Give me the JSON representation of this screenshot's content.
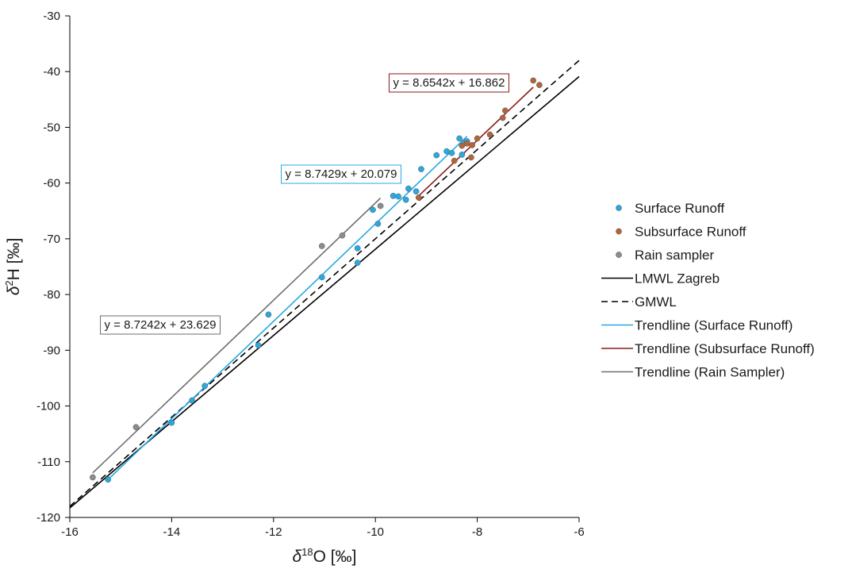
{
  "chart_data": {
    "type": "scatter",
    "xlabel": {
      "main": "δ",
      "sup": "18",
      "rest": "O [‰]"
    },
    "ylabel": {
      "main": "δ",
      "sup": "2",
      "rest": "H [‰]"
    },
    "xlim": [
      -16,
      -6
    ],
    "ylim": [
      -120,
      -30
    ],
    "x_ticks": [
      -16,
      -14,
      -12,
      -10,
      -8,
      -6
    ],
    "y_ticks": [
      -30,
      -40,
      -50,
      -60,
      -70,
      -80,
      -90,
      -100,
      -110,
      -120
    ],
    "grid": false,
    "legend_position": "right",
    "series": [
      {
        "name": "Surface Runoff",
        "kind": "points",
        "color": "#29A9E0",
        "points": [
          [
            -15.25,
            -113.2
          ],
          [
            -14.0,
            -103.0
          ],
          [
            -13.6,
            -99.0
          ],
          [
            -13.35,
            -96.4
          ],
          [
            -12.3,
            -89.1
          ],
          [
            -12.1,
            -83.6
          ],
          [
            -11.05,
            -76.9
          ],
          [
            -10.35,
            -74.3
          ],
          [
            -10.35,
            -71.7
          ],
          [
            -9.95,
            -67.3
          ],
          [
            -10.05,
            -64.8
          ],
          [
            -9.65,
            -62.3
          ],
          [
            -9.55,
            -62.4
          ],
          [
            -9.4,
            -63.0
          ],
          [
            -9.35,
            -61.0
          ],
          [
            -9.2,
            -61.5
          ],
          [
            -9.1,
            -57.5
          ],
          [
            -8.8,
            -55.0
          ],
          [
            -8.6,
            -54.3
          ],
          [
            -8.5,
            -54.6
          ],
          [
            -8.35,
            -52.0
          ],
          [
            -8.3,
            -54.9
          ],
          [
            -8.25,
            -52.8
          ],
          [
            -8.2,
            -52.5
          ]
        ]
      },
      {
        "name": "Subsurface Runoff",
        "kind": "points",
        "color": "#B3653A",
        "points": [
          [
            -9.15,
            -62.6
          ],
          [
            -8.45,
            -56.0
          ],
          [
            -8.3,
            -53.3
          ],
          [
            -8.2,
            -52.9
          ],
          [
            -8.12,
            -55.4
          ],
          [
            -8.1,
            -53.2
          ],
          [
            -8.0,
            -52.0
          ],
          [
            -7.75,
            -51.3
          ],
          [
            -7.5,
            -48.3
          ],
          [
            -7.45,
            -47.0
          ],
          [
            -6.9,
            -41.6
          ],
          [
            -6.78,
            -42.4
          ]
        ]
      },
      {
        "name": "Rain sampler",
        "kind": "points",
        "color": "#8C8C8C",
        "points": [
          [
            -15.55,
            -112.8
          ],
          [
            -14.7,
            -103.8
          ],
          [
            -11.05,
            -71.3
          ],
          [
            -10.65,
            -69.4
          ],
          [
            -9.9,
            -64.1
          ]
        ]
      },
      {
        "name": "LMWL Zagreb",
        "kind": "line",
        "color": "#000000",
        "dash": "none",
        "points": [
          [
            -16,
            -118.3
          ],
          [
            -6,
            -40.9
          ]
        ]
      },
      {
        "name": "GMWL",
        "kind": "line",
        "color": "#000000",
        "dash": "8,5",
        "points": [
          [
            -16,
            -118.0
          ],
          [
            -6,
            -38.0
          ]
        ]
      },
      {
        "name": "Trendline (Surface Runoff)",
        "kind": "line",
        "color": "#29A9E0",
        "dash": "none",
        "points": [
          [
            -15.25,
            -113.2
          ],
          [
            -8.2,
            -51.6
          ]
        ]
      },
      {
        "name": "Trendline (Subsurface Runoff)",
        "kind": "line",
        "color": "#8B1A1A",
        "dash": "none",
        "points": [
          [
            -9.15,
            -62.3
          ],
          [
            -6.9,
            -42.8
          ]
        ]
      },
      {
        "name": "Trendline (Rain Sampler)",
        "kind": "line",
        "color": "#6E6E6E",
        "dash": "none",
        "points": [
          [
            -15.55,
            -112.0
          ],
          [
            -9.9,
            -62.7
          ]
        ]
      }
    ],
    "annotations": [
      {
        "text": "y = 8.6542x + 16.862",
        "series": "Subsurface Runoff",
        "color": "#8B1A1A"
      },
      {
        "text": "y = 8.7429x + 20.079",
        "series": "Surface Runoff",
        "color": "#29A9E0"
      },
      {
        "text": "y = 8.7242x + 23.629",
        "series": "Rain sampler",
        "color": "#6E6E6E"
      }
    ]
  }
}
